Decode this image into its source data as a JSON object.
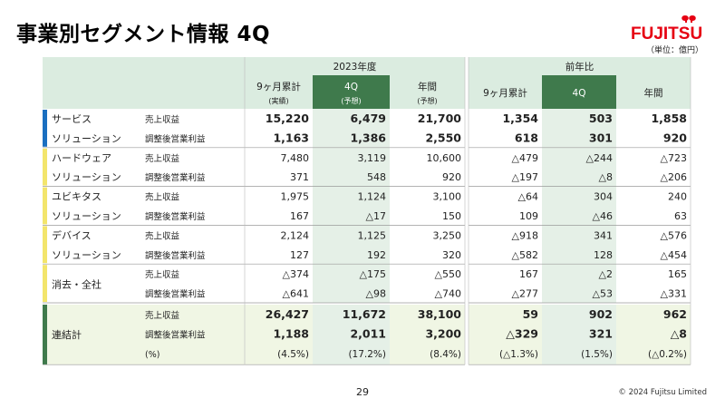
{
  "title": "事業別セグメント情報 4Q",
  "unit": "（単位：億円）",
  "logo_text": "FUJITSU",
  "header": {
    "group_2023": "2023年度",
    "group_yoy": "前年比",
    "col_9m": "9ヶ月累計",
    "col_9m_sub": "(実績)",
    "col_4q": "4Q",
    "col_4q_sub": "(予想)",
    "col_year": "年間",
    "col_year_sub": "(予想)",
    "yoy_9m": "9ヶ月累計",
    "yoy_4q": "4Q",
    "yoy_year": "年間"
  },
  "segments": [
    {
      "name1": "サービス",
      "name2": "ソリューション",
      "accent": "#1a6fc0",
      "rows": [
        {
          "label": "売上収益",
          "v": [
            "15,220",
            "6,479",
            "21,700",
            "1,354",
            "503",
            "1,858"
          ]
        },
        {
          "label": "調整後営業利益",
          "v": [
            "1,163",
            "1,386",
            "2,550",
            "618",
            "301",
            "920"
          ]
        }
      ]
    },
    {
      "name1": "ハードウェア",
      "name2": "ソリューション",
      "accent": "#f3e56b",
      "rows": [
        {
          "label": "売上収益",
          "v": [
            "7,480",
            "3,119",
            "10,600",
            "△479",
            "△244",
            "△723"
          ]
        },
        {
          "label": "調整後営業利益",
          "v": [
            "371",
            "548",
            "920",
            "△197",
            "△8",
            "△206"
          ]
        }
      ]
    },
    {
      "name1": "ユビキタス",
      "name2": "ソリューション",
      "accent": "#f3e56b",
      "rows": [
        {
          "label": "売上収益",
          "v": [
            "1,975",
            "1,124",
            "3,100",
            "△64",
            "304",
            "240"
          ]
        },
        {
          "label": "調整後営業利益",
          "v": [
            "167",
            "△17",
            "150",
            "109",
            "△46",
            "63"
          ]
        }
      ]
    },
    {
      "name1": "デバイス",
      "name2": "ソリューション",
      "accent": "#f3e56b",
      "rows": [
        {
          "label": "売上収益",
          "v": [
            "2,124",
            "1,125",
            "3,250",
            "△918",
            "341",
            "△576"
          ]
        },
        {
          "label": "調整後営業利益",
          "v": [
            "127",
            "192",
            "320",
            "△582",
            "128",
            "△454"
          ]
        }
      ]
    },
    {
      "name1": "消去・全社",
      "name2": "",
      "accent": "#f3e56b",
      "rows": [
        {
          "label": "売上収益",
          "v": [
            "△374",
            "△175",
            "△550",
            "167",
            "△2",
            "165"
          ]
        },
        {
          "label": "調整後営業利益",
          "v": [
            "△641",
            "△98",
            "△740",
            "△277",
            "△53",
            "△331"
          ]
        }
      ]
    }
  ],
  "consolidated": {
    "name": "連結計",
    "accent": "#3f7a4c",
    "rows": [
      {
        "label": "売上収益",
        "v": [
          "26,427",
          "11,672",
          "38,100",
          "59",
          "902",
          "962"
        ]
      },
      {
        "label": "調整後営業利益",
        "v": [
          "1,188",
          "2,011",
          "3,200",
          "△329",
          "321",
          "△8"
        ]
      },
      {
        "label": "(%)",
        "v": [
          "(4.5%)",
          "(17.2%)",
          "(8.4%)",
          "(△1.3%)",
          "(1.5%)",
          "(△0.2%)"
        ]
      }
    ]
  },
  "colors": {
    "header_light": "#dbece0",
    "header_dark": "#3f7a4c",
    "col_highlight": "#e5f0e7",
    "consolidated_bg": "#f0f6e4",
    "line": "#9a9a9a"
  },
  "page_number": "29",
  "copyright": "© 2024 Fujitsu Limited"
}
